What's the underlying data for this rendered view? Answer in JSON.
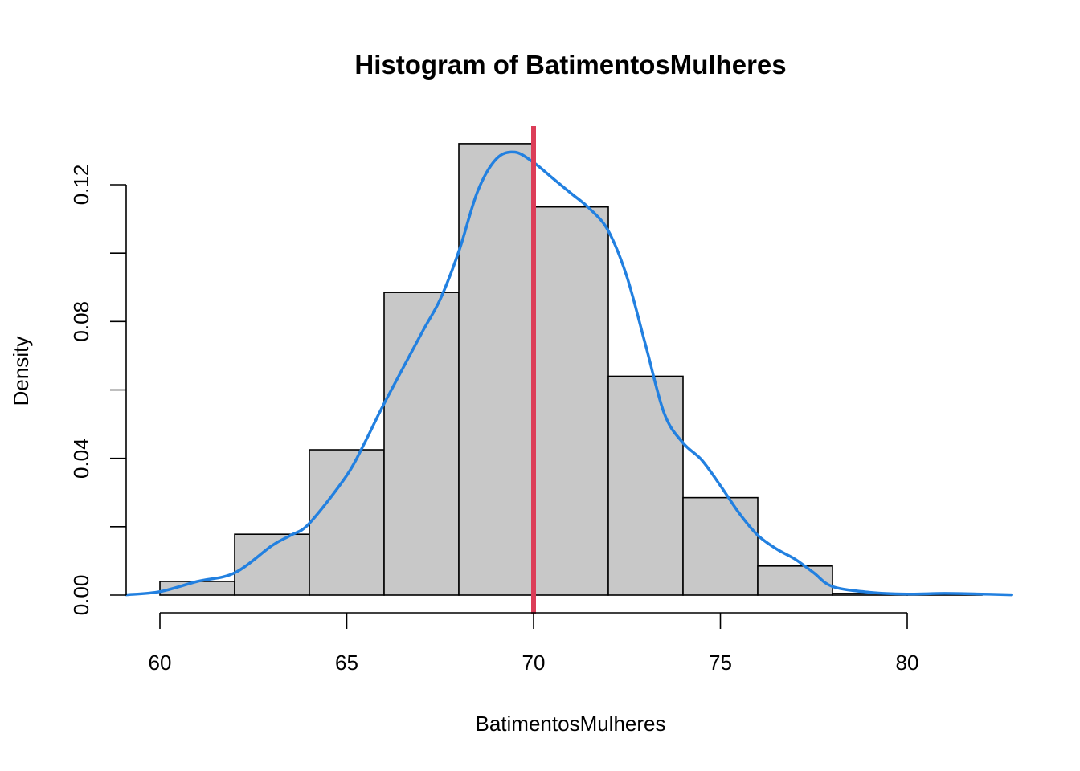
{
  "chart_data": {
    "type": "bar",
    "subtype": "histogram",
    "title": "Histogram of BatimentosMulheres",
    "xlabel": "BatimentosMulheres",
    "ylabel": "Density",
    "xlim": [
      59,
      83
    ],
    "ylim": [
      0,
      0.132
    ],
    "x_ticks": [
      60,
      65,
      70,
      75,
      80
    ],
    "x_tick_labels": [
      "60",
      "65",
      "70",
      "75",
      "80"
    ],
    "y_ticks": [
      0.0,
      0.02,
      0.04,
      0.06,
      0.08,
      0.1,
      0.12
    ],
    "y_tick_labels": [
      "0.00",
      "",
      "0.04",
      "",
      "0.08",
      "",
      "0.12"
    ],
    "bins": [
      {
        "x0": 60,
        "x1": 62,
        "density": 0.004
      },
      {
        "x0": 62,
        "x1": 64,
        "density": 0.0178
      },
      {
        "x0": 64,
        "x1": 66,
        "density": 0.0425
      },
      {
        "x0": 66,
        "x1": 68,
        "density": 0.0885
      },
      {
        "x0": 68,
        "x1": 70,
        "density": 0.132
      },
      {
        "x0": 70,
        "x1": 72,
        "density": 0.1135
      },
      {
        "x0": 72,
        "x1": 74,
        "density": 0.064
      },
      {
        "x0": 74,
        "x1": 76,
        "density": 0.0285
      },
      {
        "x0": 76,
        "x1": 78,
        "density": 0.0085
      },
      {
        "x0": 78,
        "x1": 80,
        "density": 0.0005
      },
      {
        "x0": 80,
        "x1": 82,
        "density": 0.0003
      }
    ],
    "density_curve": {
      "color": "#2280e0",
      "x": [
        59.1,
        60.0,
        61.0,
        62.0,
        63.0,
        63.5,
        64.0,
        65.0,
        65.5,
        66.0,
        67.0,
        67.5,
        68.0,
        68.5,
        69.0,
        69.5,
        70.0,
        70.5,
        71.0,
        71.5,
        72.0,
        72.5,
        73.0,
        73.5,
        74.0,
        74.5,
        75.0,
        75.5,
        76.0,
        76.5,
        77.0,
        77.5,
        78.0,
        79.0,
        80.0,
        81.0,
        82.0,
        82.8
      ],
      "y": [
        0.0001,
        0.001,
        0.004,
        0.0065,
        0.0145,
        0.0175,
        0.021,
        0.035,
        0.045,
        0.056,
        0.0765,
        0.0865,
        0.1005,
        0.118,
        0.1275,
        0.1295,
        0.1265,
        0.122,
        0.1175,
        0.113,
        0.1065,
        0.093,
        0.073,
        0.053,
        0.0445,
        0.0395,
        0.032,
        0.024,
        0.0175,
        0.0135,
        0.0105,
        0.0065,
        0.0025,
        0.0008,
        0.0003,
        0.0005,
        0.0003,
        0.0001
      ]
    },
    "mean_line": {
      "x": 70.0,
      "color": "#dc3d58"
    },
    "grid": false,
    "legend": "none"
  }
}
